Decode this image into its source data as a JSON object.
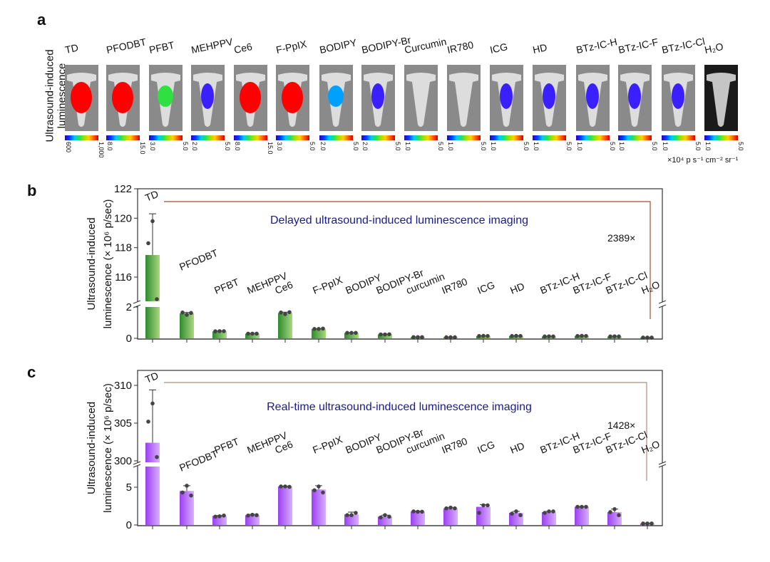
{
  "panels": {
    "a": {
      "letter": "a",
      "ylabel_line1": "Ultrasound-induced",
      "ylabel_line2": "luminescence",
      "unit_label": "×10⁴ p s⁻¹ cm⁻² sr⁻¹",
      "samples": [
        {
          "name": "TD",
          "scale_min": "600",
          "scale_max": "1,000",
          "signal": "strong-red"
        },
        {
          "name": "PFODBT",
          "scale_min": "8.0",
          "scale_max": "15.0",
          "signal": "strong-red"
        },
        {
          "name": "PFBT",
          "scale_min": "3.0",
          "scale_max": "5.0",
          "signal": "medium-green"
        },
        {
          "name": "MEHPPV",
          "scale_min": "2.0",
          "scale_max": "5.0",
          "signal": "weak-blue"
        },
        {
          "name": "Ce6",
          "scale_min": "8.0",
          "scale_max": "15.0",
          "signal": "strong-red"
        },
        {
          "name": "F-PpIX",
          "scale_min": "3.0",
          "scale_max": "5.0",
          "signal": "strong-red"
        },
        {
          "name": "BODIPY",
          "scale_min": "2.0",
          "scale_max": "5.0",
          "signal": "medium-blue"
        },
        {
          "name": "BODIPY-Br",
          "scale_min": "2.0",
          "scale_max": "5.0",
          "signal": "weak-blue"
        },
        {
          "name": "Curcumin",
          "scale_min": "1.0",
          "scale_max": "5.0",
          "signal": "none"
        },
        {
          "name": "IR780",
          "scale_min": "1.0",
          "scale_max": "5.0",
          "signal": "none"
        },
        {
          "name": "ICG",
          "scale_min": "1.0",
          "scale_max": "5.0",
          "signal": "weak-blue"
        },
        {
          "name": "HD",
          "scale_min": "1.0",
          "scale_max": "5.0",
          "signal": "weak-blue"
        },
        {
          "name": "BTz-IC-H",
          "scale_min": "1.0",
          "scale_max": "5.0",
          "signal": "weak-blue"
        },
        {
          "name": "BTz-IC-F",
          "scale_min": "1.0",
          "scale_max": "5.0",
          "signal": "weak-blue"
        },
        {
          "name": "BTz-IC-Cl",
          "scale_min": "1.0",
          "scale_max": "5.0",
          "signal": "weak-blue"
        },
        {
          "name": "H₂O",
          "scale_min": "1.0",
          "scale_max": "5.0",
          "signal": "none-dark"
        }
      ]
    }
  },
  "chart_data": [
    {
      "id": "b",
      "letter": "b",
      "type": "bar",
      "title": "Delayed ultrasound-induced luminescence  imaging",
      "ylabel_line1": "Ultrasound-induced",
      "ylabel_line2": "luminescence (× 10⁶ p/sec)",
      "fold_annotation": "2389×",
      "color_dark": "#2e8b2e",
      "color_light": "#a8d880",
      "axis_break": {
        "lower": [
          0,
          2
        ],
        "upper": [
          115,
          122
        ]
      },
      "yticks_lower": [
        "0",
        "2"
      ],
      "yticks_upper": [
        "116",
        "118",
        "120",
        "122"
      ],
      "categories": [
        "TD",
        "PFODBT",
        "PFBT",
        "MEHPPV",
        "Ce6",
        "F-PpIX",
        "BODIPY",
        "BODIPY-Br",
        "curcumin",
        "IR780",
        "ICG",
        "HD",
        "BTz-IC-H",
        "BTz-IC-F",
        "BTz-IC-Cl",
        "H₂O"
      ],
      "values": [
        117.5,
        1.6,
        0.45,
        0.3,
        1.62,
        0.6,
        0.35,
        0.25,
        0.08,
        0.07,
        0.15,
        0.15,
        0.12,
        0.15,
        0.12,
        0.05
      ],
      "errors": [
        2.8,
        0.05,
        0.02,
        0.02,
        0.05,
        0.02,
        0.02,
        0.02,
        0.01,
        0.01,
        0.02,
        0.02,
        0.02,
        0.02,
        0.02,
        0.01
      ],
      "points": [
        [
          118.3,
          119.8,
          114.5
        ],
        [
          1.65,
          1.5,
          1.62
        ],
        [
          0.45,
          0.46,
          0.46
        ],
        [
          0.3,
          0.3,
          0.3
        ],
        [
          1.65,
          1.55,
          1.67
        ],
        [
          0.6,
          0.6,
          0.62
        ],
        [
          0.35,
          0.35,
          0.35
        ],
        [
          0.25,
          0.25,
          0.26
        ],
        [
          0.08,
          0.08,
          0.08
        ],
        [
          0.07,
          0.07,
          0.07
        ],
        [
          0.15,
          0.16,
          0.15
        ],
        [
          0.15,
          0.16,
          0.15
        ],
        [
          0.12,
          0.13,
          0.12
        ],
        [
          0.15,
          0.16,
          0.15
        ],
        [
          0.12,
          0.13,
          0.12
        ],
        [
          0.05,
          0.05,
          0.05
        ]
      ]
    },
    {
      "id": "c",
      "letter": "c",
      "type": "bar",
      "title": "Real-time ultrasound-induced luminescence  imaging",
      "ylabel_line1": "Ultrasound-induced",
      "ylabel_line2": "luminescence (× 10⁶ p/sec)",
      "fold_annotation": "1428×",
      "color_dark": "#9b3ff0",
      "color_light": "#d9b0ff",
      "axis_break": {
        "lower": [
          0,
          8
        ],
        "upper": [
          300,
          312
        ]
      },
      "yticks_lower": [
        "0",
        "5"
      ],
      "yticks_upper": [
        "300",
        "305",
        "310"
      ],
      "categories": [
        "TD",
        "PFODBT",
        "PFBT",
        "MEHPPV",
        "Ce6",
        "F-PpIX",
        "BODIPY",
        "BODIPY-Br",
        "curcumin",
        "IR780",
        "ICG",
        "HD",
        "BTz-IC-H",
        "BTz-IC-F",
        "BTz-IC-Cl",
        "H₂O"
      ],
      "values": [
        302.4,
        4.5,
        1.2,
        1.3,
        5.1,
        4.7,
        1.4,
        1.1,
        1.8,
        2.2,
        2.4,
        1.6,
        1.7,
        2.4,
        1.7,
        0.2
      ],
      "errors": [
        7.0,
        0.7,
        0.05,
        0.1,
        0.05,
        0.5,
        0.3,
        0.2,
        0.05,
        0.1,
        0.3,
        0.2,
        0.1,
        0.05,
        0.4,
        0.02
      ],
      "points": [
        [
          305.2,
          307.6,
          300.5
        ],
        [
          4.3,
          5.2,
          3.9
        ],
        [
          1.1,
          1.15,
          1.25
        ],
        [
          1.25,
          1.35,
          1.3
        ],
        [
          5.1,
          5.1,
          5.05
        ],
        [
          4.6,
          5.1,
          4.3
        ],
        [
          1.3,
          1.3,
          1.6
        ],
        [
          1.0,
          1.3,
          1.1
        ],
        [
          1.8,
          1.75,
          1.75
        ],
        [
          2.2,
          2.3,
          2.2
        ],
        [
          1.6,
          2.6,
          2.6
        ],
        [
          1.5,
          1.8,
          1.3
        ],
        [
          1.6,
          1.8,
          1.8
        ],
        [
          2.4,
          2.4,
          2.4
        ],
        [
          1.7,
          2.1,
          1.3
        ],
        [
          0.2,
          0.2,
          0.2
        ]
      ]
    }
  ]
}
